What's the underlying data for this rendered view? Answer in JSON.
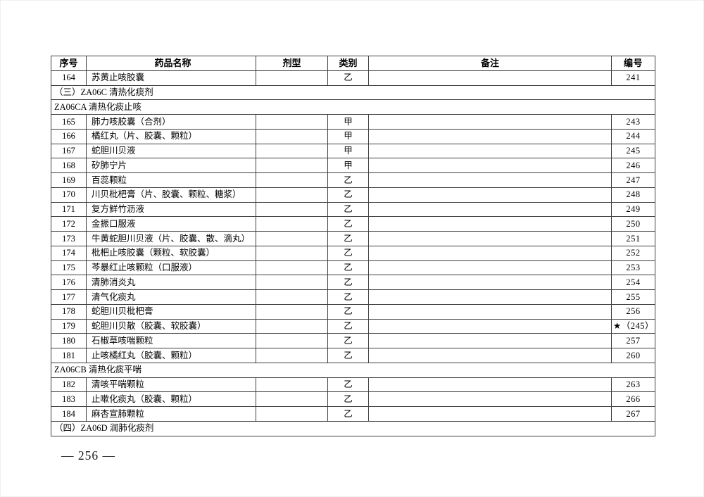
{
  "page": {
    "number_label": "— 256 —"
  },
  "table": {
    "columns": [
      {
        "key": "index",
        "label": "序号"
      },
      {
        "key": "name",
        "label": "药品名称"
      },
      {
        "key": "form",
        "label": "剂型"
      },
      {
        "key": "category",
        "label": "类别"
      },
      {
        "key": "remark",
        "label": "备注"
      },
      {
        "key": "code",
        "label": "编号"
      }
    ],
    "rows": [
      {
        "type": "drug",
        "index": "164",
        "name": "苏黄止咳胶囊",
        "form": "",
        "category": "乙",
        "remark": "",
        "code": "241"
      },
      {
        "type": "section",
        "text": "（三）ZA06C 清热化痰剂"
      },
      {
        "type": "section",
        "text": "ZA06CA 清热化痰止咳"
      },
      {
        "type": "drug",
        "index": "165",
        "name": "肺力咳胶囊（合剂）",
        "form": "",
        "category": "甲",
        "remark": "",
        "code": "243"
      },
      {
        "type": "drug",
        "index": "166",
        "name": "橘红丸（片、胶囊、颗粒）",
        "form": "",
        "category": "甲",
        "remark": "",
        "code": "244"
      },
      {
        "type": "drug",
        "index": "167",
        "name": "蛇胆川贝液",
        "form": "",
        "category": "甲",
        "remark": "",
        "code": "245"
      },
      {
        "type": "drug",
        "index": "168",
        "name": "矽肺宁片",
        "form": "",
        "category": "甲",
        "remark": "",
        "code": "246"
      },
      {
        "type": "drug",
        "index": "169",
        "name": "百蕊颗粒",
        "form": "",
        "category": "乙",
        "remark": "",
        "code": "247"
      },
      {
        "type": "drug",
        "index": "170",
        "name": "川贝枇杷膏（片、胶囊、颗粒、糖浆）",
        "form": "",
        "category": "乙",
        "remark": "",
        "code": "248"
      },
      {
        "type": "drug",
        "index": "171",
        "name": "复方鲜竹沥液",
        "form": "",
        "category": "乙",
        "remark": "",
        "code": "249"
      },
      {
        "type": "drug",
        "index": "172",
        "name": "金振口服液",
        "form": "",
        "category": "乙",
        "remark": "",
        "code": "250"
      },
      {
        "type": "drug",
        "index": "173",
        "name": "牛黄蛇胆川贝液（片、胶囊、散、滴丸）",
        "form": "",
        "category": "乙",
        "remark": "",
        "code": "251"
      },
      {
        "type": "drug",
        "index": "174",
        "name": "枇杷止咳胶囊（颗粒、软胶囊）",
        "form": "",
        "category": "乙",
        "remark": "",
        "code": "252"
      },
      {
        "type": "drug",
        "index": "175",
        "name": "芩暴红止咳颗粒（口服液）",
        "form": "",
        "category": "乙",
        "remark": "",
        "code": "253"
      },
      {
        "type": "drug",
        "index": "176",
        "name": "清肺消炎丸",
        "form": "",
        "category": "乙",
        "remark": "",
        "code": "254"
      },
      {
        "type": "drug",
        "index": "177",
        "name": "清气化痰丸",
        "form": "",
        "category": "乙",
        "remark": "",
        "code": "255"
      },
      {
        "type": "drug",
        "index": "178",
        "name": "蛇胆川贝枇杷膏",
        "form": "",
        "category": "乙",
        "remark": "",
        "code": "256"
      },
      {
        "type": "drug",
        "index": "179",
        "name": "蛇胆川贝散（胶囊、软胶囊）",
        "form": "",
        "category": "乙",
        "remark": "",
        "code": "★（245）"
      },
      {
        "type": "drug",
        "index": "180",
        "name": "石椒草咳喘颗粒",
        "form": "",
        "category": "乙",
        "remark": "",
        "code": "257"
      },
      {
        "type": "drug",
        "index": "181",
        "name": "止咳橘红丸（胶囊、颗粒）",
        "form": "",
        "category": "乙",
        "remark": "",
        "code": "260"
      },
      {
        "type": "section",
        "text": "ZA06CB 清热化痰平喘"
      },
      {
        "type": "drug",
        "index": "182",
        "name": "清咳平喘颗粒",
        "form": "",
        "category": "乙",
        "remark": "",
        "code": "263"
      },
      {
        "type": "drug",
        "index": "183",
        "name": "止嗽化痰丸（胶囊、颗粒）",
        "form": "",
        "category": "乙",
        "remark": "",
        "code": "266"
      },
      {
        "type": "drug",
        "index": "184",
        "name": "麻杏宣肺颗粒",
        "form": "",
        "category": "乙",
        "remark": "",
        "code": "267"
      },
      {
        "type": "section",
        "text": "（四）ZA06D 润肺化痰剂"
      }
    ]
  }
}
